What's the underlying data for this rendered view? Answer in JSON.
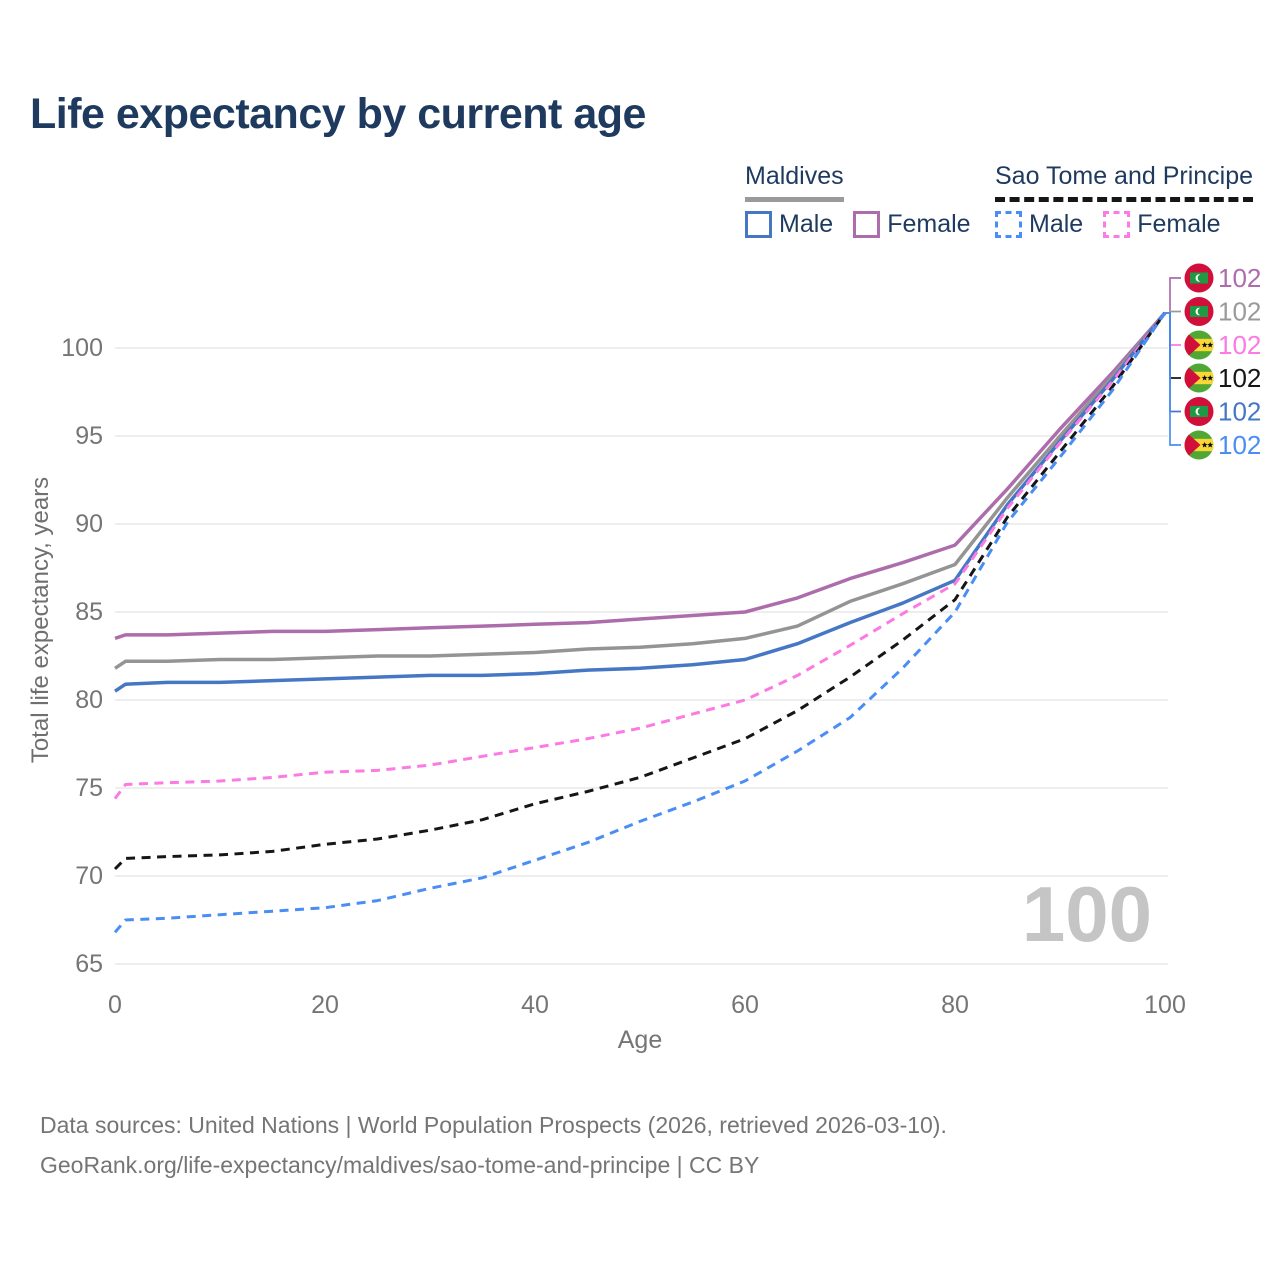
{
  "title": "Life expectancy by current age",
  "legend": {
    "groups": [
      {
        "label": "Maldives",
        "line_style": "solid",
        "underline_color": "#9a9a9a",
        "items": [
          {
            "label": "Male",
            "color": "#4677c5",
            "dashed": false
          },
          {
            "label": "Female",
            "color": "#ad6cac",
            "dashed": false
          }
        ]
      },
      {
        "label": "Sao Tome and Principe",
        "line_style": "dashed",
        "underline_color": "#161616",
        "items": [
          {
            "label": "Male",
            "color": "#4a8ef5",
            "dashed": true
          },
          {
            "label": "Female",
            "color": "#fb7ae3",
            "dashed": true
          }
        ]
      }
    ]
  },
  "y_axis": {
    "title": "Total life expectancy, years",
    "ticks": [
      65,
      70,
      75,
      80,
      85,
      90,
      95,
      100
    ]
  },
  "x_axis": {
    "title": "Age",
    "ticks": [
      0,
      20,
      40,
      60,
      80,
      100
    ]
  },
  "watermark": "100",
  "end_labels": [
    {
      "flag": "maldives",
      "series": "Maldives Female",
      "value": "102",
      "color": "#ad6cac"
    },
    {
      "flag": "maldives",
      "series": "Maldives",
      "value": "102",
      "color": "#9a9a9a"
    },
    {
      "flag": "sao-tome",
      "series": "Sao Tome and Principe Female",
      "value": "102",
      "color": "#fb7ae3"
    },
    {
      "flag": "sao-tome",
      "series": "Sao Tome and Principe",
      "value": "102",
      "color": "#161616"
    },
    {
      "flag": "maldives",
      "series": "Maldives Male",
      "value": "102",
      "color": "#4677c5"
    },
    {
      "flag": "sao-tome",
      "series": "Sao Tome and Principe Male",
      "value": "102",
      "color": "#4a8ef5"
    }
  ],
  "footer": {
    "line1": "Data sources: United Nations | World Population Prospects (2026, retrieved 2026-03-10).",
    "line2": "GeoRank.org/life-expectancy/maldives/sao-tome-and-principe | CC BY"
  },
  "chart_data": {
    "type": "line",
    "title": "Life expectancy by current age",
    "xlabel": "Age",
    "ylabel": "Total life expectancy, years",
    "xlim": [
      0,
      100
    ],
    "ylim": [
      63.5,
      103.5
    ],
    "grid": "horizontal",
    "legend_position": "top-right",
    "annotation": "100",
    "x": [
      0,
      1,
      5,
      10,
      15,
      20,
      25,
      30,
      35,
      40,
      45,
      50,
      55,
      60,
      65,
      70,
      75,
      80,
      85,
      90,
      95,
      100
    ],
    "series": [
      {
        "name": "Maldives Female",
        "color": "#ad6cac",
        "dashed": false,
        "values": [
          83.5,
          83.7,
          83.7,
          83.8,
          83.9,
          83.9,
          84.0,
          84.1,
          84.2,
          84.3,
          84.4,
          84.6,
          84.8,
          85.0,
          85.8,
          86.9,
          87.8,
          88.8,
          92.0,
          95.4,
          98.6,
          102
        ]
      },
      {
        "name": "Maldives",
        "color": "#949494",
        "dashed": false,
        "values": [
          81.8,
          82.2,
          82.2,
          82.3,
          82.3,
          82.4,
          82.5,
          82.5,
          82.6,
          82.7,
          82.9,
          83.0,
          83.2,
          83.5,
          84.2,
          85.6,
          86.6,
          87.7,
          91.5,
          95.0,
          98.4,
          102
        ]
      },
      {
        "name": "Maldives Male",
        "color": "#4677c5",
        "dashed": false,
        "values": [
          80.5,
          80.9,
          81.0,
          81.0,
          81.1,
          81.2,
          81.3,
          81.4,
          81.4,
          81.5,
          81.7,
          81.8,
          82.0,
          82.3,
          83.2,
          84.4,
          85.5,
          86.8,
          91.1,
          94.7,
          98.2,
          102
        ]
      },
      {
        "name": "Sao Tome and Principe Female",
        "color": "#fb7ae3",
        "dashed": true,
        "values": [
          74.4,
          75.2,
          75.3,
          75.4,
          75.6,
          75.9,
          76.0,
          76.3,
          76.8,
          77.3,
          77.8,
          78.4,
          79.2,
          80.0,
          81.4,
          83.1,
          84.9,
          86.6,
          90.9,
          94.6,
          98.1,
          102
        ]
      },
      {
        "name": "Sao Tome and Principe",
        "color": "#161616",
        "dashed": true,
        "values": [
          70.4,
          71.0,
          71.1,
          71.2,
          71.4,
          71.8,
          72.1,
          72.6,
          73.2,
          74.1,
          74.8,
          75.6,
          76.7,
          77.8,
          79.4,
          81.3,
          83.4,
          85.7,
          90.4,
          94.1,
          97.8,
          102
        ]
      },
      {
        "name": "Sao Tome and Principe Male",
        "color": "#4a8ef5",
        "dashed": true,
        "values": [
          66.8,
          67.5,
          67.6,
          67.8,
          68.0,
          68.2,
          68.6,
          69.3,
          69.9,
          70.9,
          71.9,
          73.1,
          74.2,
          75.4,
          77.1,
          79.0,
          81.8,
          85.0,
          90.1,
          93.8,
          97.6,
          102
        ]
      }
    ]
  }
}
